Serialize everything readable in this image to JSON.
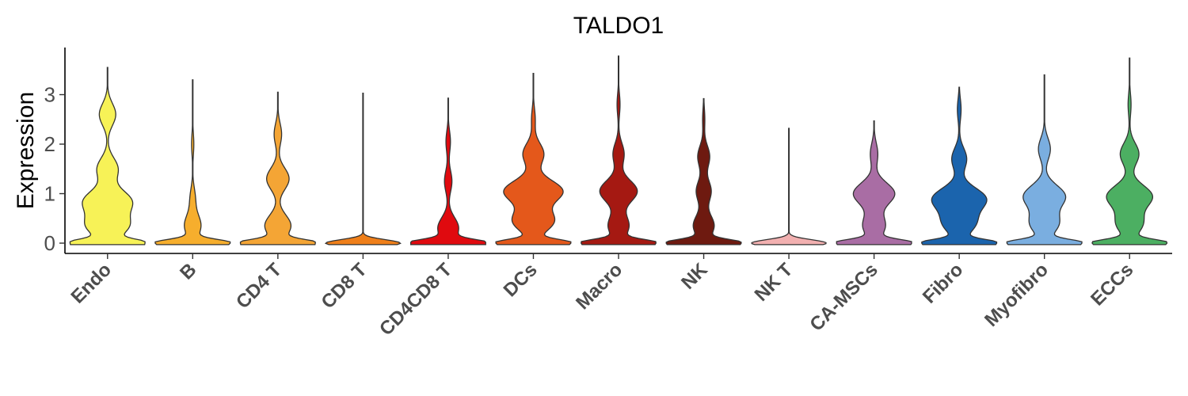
{
  "chart_data": {
    "type": "violin",
    "title": "TALDO1",
    "xlabel": "",
    "ylabel": "Expression",
    "ylim": [
      -0.2,
      3.9
    ],
    "yticks": [
      0,
      1,
      2,
      3
    ],
    "grid": false,
    "legend": "none",
    "categories": [
      "Endo",
      "B",
      "CD4 T",
      "CD8 T",
      "CD4CD8 T",
      "DCs",
      "Macro",
      "NK",
      "NK T",
      "CA-MSCs",
      "Fibro",
      "Myofibro",
      "ECCs"
    ],
    "colors": [
      "#f7f257",
      "#f6ae2d",
      "#f4a535",
      "#ef7f1a",
      "#e00a0f",
      "#e4581b",
      "#a51912",
      "#6e1a10",
      "#f2b0b0",
      "#a96da4",
      "#1b64ad",
      "#7aaee0",
      "#4caf62"
    ],
    "max": [
      3.55,
      3.3,
      3.05,
      3.03,
      2.93,
      3.43,
      3.78,
      2.92,
      2.32,
      2.47,
      3.15,
      3.4,
      3.74
    ],
    "density_peaks": [
      [
        [
          0.0,
          0.95
        ],
        [
          0.35,
          0.55
        ],
        [
          0.85,
          0.62
        ],
        [
          1.5,
          0.28
        ],
        [
          2.6,
          0.22
        ]
      ],
      [
        [
          0.0,
          1.0
        ],
        [
          0.35,
          0.22
        ],
        [
          0.9,
          0.07
        ],
        [
          2.0,
          0.03
        ]
      ],
      [
        [
          0.0,
          1.0
        ],
        [
          0.35,
          0.35
        ],
        [
          1.3,
          0.3
        ],
        [
          2.2,
          0.1
        ]
      ],
      [
        [
          0.0,
          1.0
        ]
      ],
      [
        [
          0.0,
          1.0
        ],
        [
          0.3,
          0.28
        ],
        [
          1.25,
          0.1
        ],
        [
          2.05,
          0.06
        ]
      ],
      [
        [
          0.0,
          1.0
        ],
        [
          0.45,
          0.55
        ],
        [
          1.05,
          0.78
        ],
        [
          1.8,
          0.28
        ],
        [
          2.5,
          0.05
        ]
      ],
      [
        [
          0.0,
          1.0
        ],
        [
          0.35,
          0.28
        ],
        [
          1.05,
          0.5
        ],
        [
          1.8,
          0.15
        ],
        [
          2.8,
          0.04
        ]
      ],
      [
        [
          0.0,
          1.0
        ],
        [
          0.35,
          0.28
        ],
        [
          1.05,
          0.2
        ],
        [
          1.75,
          0.16
        ],
        [
          2.5,
          0.03
        ]
      ],
      [
        [
          0.0,
          1.0
        ]
      ],
      [
        [
          0.0,
          1.0
        ],
        [
          0.35,
          0.3
        ],
        [
          1.0,
          0.55
        ],
        [
          1.8,
          0.1
        ]
      ],
      [
        [
          0.0,
          1.0
        ],
        [
          0.4,
          0.42
        ],
        [
          0.9,
          0.7
        ],
        [
          1.7,
          0.2
        ],
        [
          2.7,
          0.05
        ]
      ],
      [
        [
          0.0,
          1.0
        ],
        [
          0.4,
          0.38
        ],
        [
          0.95,
          0.55
        ],
        [
          1.9,
          0.16
        ]
      ],
      [
        [
          0.0,
          1.0
        ],
        [
          0.4,
          0.35
        ],
        [
          0.95,
          0.6
        ],
        [
          1.8,
          0.25
        ],
        [
          2.8,
          0.04
        ]
      ]
    ]
  }
}
